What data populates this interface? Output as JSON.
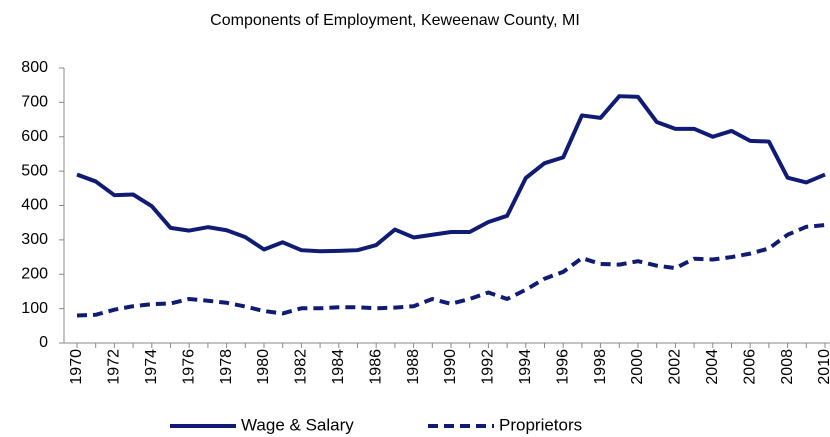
{
  "chart_data": {
    "type": "line",
    "title": "Components of Employment, Keweenaw County, MI",
    "categories": [
      "1970",
      null,
      "1972",
      null,
      "1974",
      null,
      "1976",
      null,
      "1978",
      null,
      "1980",
      null,
      "1982",
      null,
      "1984",
      null,
      "1986",
      null,
      "1988",
      null,
      "1990",
      null,
      "1992",
      null,
      "1994",
      null,
      "1996",
      null,
      "1998",
      null,
      "2000",
      null,
      "2002",
      null,
      "2004",
      null,
      "2006",
      null,
      "2008",
      null,
      "2010"
    ],
    "series": [
      {
        "name": "Wage & Salary",
        "color": "#101c74",
        "line_style": "solid",
        "values": [
          490,
          470,
          430,
          432,
          398,
          335,
          327,
          337,
          328,
          308,
          272,
          293,
          270,
          267,
          268,
          270,
          285,
          330,
          307,
          315,
          323,
          323,
          352,
          370,
          480,
          523,
          540,
          662,
          655,
          718,
          716,
          643,
          623,
          623,
          600,
          617,
          588,
          586,
          481,
          467,
          490
        ]
      },
      {
        "name": "Proprietors",
        "color": "#101c74",
        "line_style": "dashed",
        "values": [
          80,
          82,
          97,
          107,
          113,
          115,
          128,
          123,
          117,
          106,
          93,
          86,
          101,
          101,
          104,
          104,
          101,
          103,
          107,
          128,
          114,
          128,
          147,
          128,
          155,
          187,
          207,
          247,
          230,
          228,
          238,
          225,
          218,
          245,
          243,
          250,
          260,
          275,
          315,
          338,
          343
        ]
      }
    ],
    "ylim": [
      0,
      800
    ],
    "yticks": [
      0,
      100,
      200,
      300,
      400,
      500,
      600,
      700,
      800
    ],
    "grid": false,
    "legend": "bottom"
  }
}
